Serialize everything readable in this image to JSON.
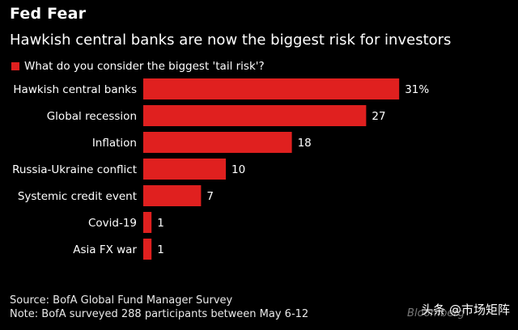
{
  "header": {
    "title": "Fed Fear",
    "subtitle": "Hawkish central banks are now the biggest risk for investors"
  },
  "legend": {
    "label": "What do you consider the biggest 'tail risk'?",
    "color": "#e0201f"
  },
  "chart_data": {
    "type": "bar",
    "orientation": "horizontal",
    "categories": [
      "Hawkish central banks",
      "Global recession",
      "Inflation",
      "Russia-Ukraine conflict",
      "Systemic credit event",
      "Covid-19",
      "Asia FX war"
    ],
    "values": [
      31,
      27,
      18,
      10,
      7,
      1,
      1
    ],
    "value_labels": [
      "31%",
      "27",
      "18",
      "10",
      "7",
      "1",
      "1"
    ],
    "series": [
      {
        "name": "What do you consider the biggest 'tail risk'?",
        "values": [
          31,
          27,
          18,
          10,
          7,
          1,
          1
        ]
      }
    ],
    "xlim": [
      0,
      35
    ],
    "grid": false,
    "legend_position": "top-left",
    "bar_color": "#e0201f"
  },
  "footer": {
    "source": "Source: BofA Global Fund Manager Survey",
    "note": "Note: BofA surveyed 288 participants between May 6-12"
  },
  "watermark": {
    "text": "头条 @市场矩阵",
    "brand": "Bloomberg"
  }
}
